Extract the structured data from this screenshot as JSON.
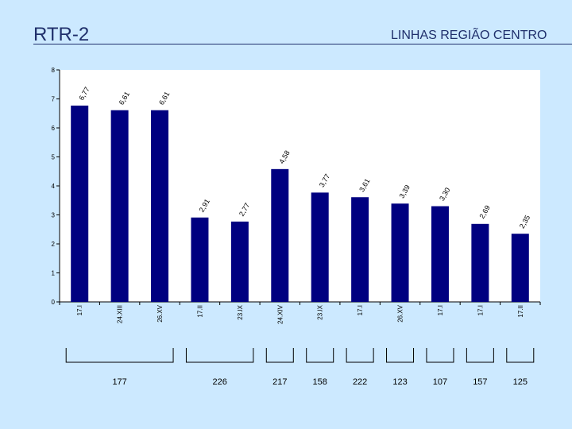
{
  "slide": {
    "title": "RTR-2",
    "subtitle": "LINHAS REGIÃO CENTRO"
  },
  "colors": {
    "background": "#cce9ff",
    "plot_area": "#ffffff",
    "bar": "#000080",
    "title": "#1f2f6b"
  },
  "chart_data": {
    "type": "bar",
    "categories": [
      "17.I",
      "24.XIII",
      "26.XV",
      "17.II",
      "23.IX",
      "24.XIV",
      "23.IX",
      "17.I",
      "26.XV",
      "17.I",
      "17.I",
      "17.II"
    ],
    "values": [
      6.77,
      6.61,
      6.61,
      2.91,
      2.77,
      4.58,
      3.77,
      3.61,
      3.39,
      3.3,
      2.69,
      2.35
    ],
    "value_labels": [
      "6,77",
      "6,61",
      "6,61",
      "2,91",
      "2,77",
      "4,58",
      "3,77",
      "3,61",
      "3,39",
      "3,30",
      "2,69",
      "2,35"
    ],
    "ylim": [
      0,
      8
    ],
    "yticks": [
      "0",
      "1",
      "2",
      "3",
      "4",
      "5",
      "6",
      "7",
      "8"
    ],
    "grid": false,
    "groups": [
      {
        "label": "177",
        "start": 0,
        "end": 2
      },
      {
        "label": "226",
        "start": 3,
        "end": 4
      },
      {
        "label": "217",
        "start": 5,
        "end": 5
      },
      {
        "label": "158",
        "start": 6,
        "end": 6
      },
      {
        "label": "222",
        "start": 7,
        "end": 7
      },
      {
        "label": "123",
        "start": 8,
        "end": 8
      },
      {
        "label": "107",
        "start": 9,
        "end": 9
      },
      {
        "label": "157",
        "start": 10,
        "end": 10
      },
      {
        "label": "125",
        "start": 11,
        "end": 11
      }
    ]
  }
}
